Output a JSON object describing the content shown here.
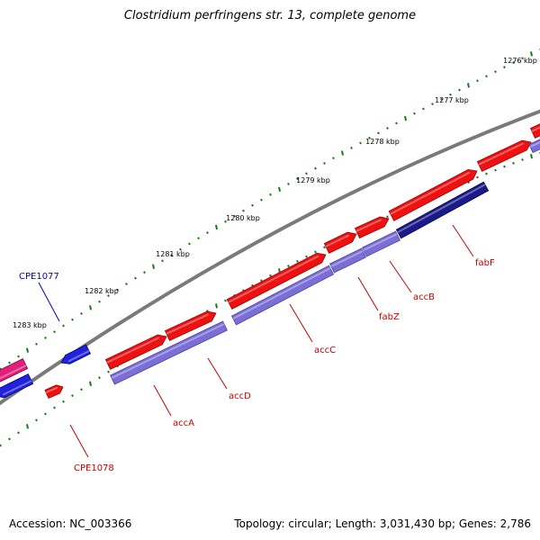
{
  "title": "Clostridium perfringens str. 13, complete genome",
  "footer": {
    "accession": "Accession: NC_003366",
    "stats": "Topology: circular; Length: 3,031,430 bp; Genes: 2,786"
  },
  "colors": {
    "backbone": "#7a7a7a",
    "tick": "#1a7a1a",
    "gene_forward": "#ee1111",
    "gene_reverse": "#2222dd",
    "gene_pink": "#e0207a",
    "cds": "#7b6fd6",
    "cds_dark": "#1a1a8a",
    "label_red": "#cc0000",
    "label_blue": "#0000cc"
  },
  "ticks": [
    {
      "label": "1276 kbp"
    },
    {
      "label": "1277 kbp"
    },
    {
      "label": "1278 kbp"
    },
    {
      "label": "1279 kbp"
    },
    {
      "label": "1280 kbp"
    },
    {
      "label": "1281 kbp"
    },
    {
      "label": "1282 kbp"
    },
    {
      "label": "1283 kbp"
    }
  ],
  "genes": [
    {
      "name": "fabF",
      "strand": "forward"
    },
    {
      "name": "accB",
      "strand": "forward"
    },
    {
      "name": "fabZ",
      "strand": "forward"
    },
    {
      "name": "accC",
      "strand": "forward"
    },
    {
      "name": "accD",
      "strand": "forward"
    },
    {
      "name": "accA",
      "strand": "forward"
    },
    {
      "name": "CPE1078",
      "strand": "forward"
    },
    {
      "name": "CPE1077",
      "strand": "reverse"
    }
  ]
}
